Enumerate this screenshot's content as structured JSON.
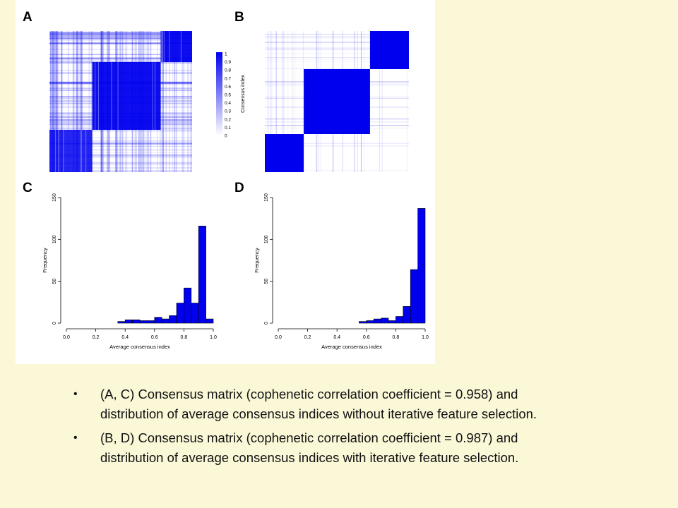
{
  "panels": {
    "a": "A",
    "b": "B",
    "c": "C",
    "d": "D"
  },
  "colorbar": {
    "title": "Consensus index",
    "ticks": [
      "1",
      "0.9",
      "0.8",
      "0.7",
      "0.6",
      "0.5",
      "0.4",
      "0.3",
      "0.2",
      "0.1",
      "0"
    ]
  },
  "colors": {
    "accent": "#0000ee",
    "background": "#fbf8d8"
  },
  "chart_data": [
    {
      "panel": "A",
      "type": "heatmap",
      "description_levels": "block consensus matrix",
      "blocks": [
        {
          "from": 0.0,
          "to": 0.3,
          "value": 0.85
        },
        {
          "from": 0.3,
          "to": 0.78,
          "value": 0.95
        },
        {
          "from": 0.78,
          "to": 1.0,
          "value": 0.95
        }
      ]
    },
    {
      "panel": "B",
      "type": "heatmap",
      "blocks": [
        {
          "from": 0.0,
          "to": 0.27,
          "value": 1.0
        },
        {
          "from": 0.27,
          "to": 0.73,
          "value": 1.0
        },
        {
          "from": 0.73,
          "to": 1.0,
          "value": 1.0
        }
      ]
    },
    {
      "panel": "C",
      "type": "bar",
      "xlabel": "Average consensus index",
      "ylabel": "Frequency",
      "xlim": [
        0,
        1
      ],
      "ylim": [
        0,
        150
      ],
      "xticks": [
        "0.0",
        "0.2",
        "0.4",
        "0.6",
        "0.8",
        "1.0"
      ],
      "yticks": [
        "0",
        "50",
        "100",
        "150"
      ],
      "bin_width": 0.05,
      "bin_starts": [
        0.35,
        0.4,
        0.45,
        0.5,
        0.55,
        0.6,
        0.65,
        0.7,
        0.75,
        0.8,
        0.85,
        0.9,
        0.95
      ],
      "values": [
        2,
        4,
        4,
        3,
        3,
        7,
        5,
        9,
        24,
        42,
        24,
        116,
        5
      ]
    },
    {
      "panel": "D",
      "type": "bar",
      "xlabel": "Average consensus index",
      "ylabel": "Frequency",
      "xlim": [
        0,
        1
      ],
      "ylim": [
        0,
        150
      ],
      "xticks": [
        "0.0",
        "0.2",
        "0.4",
        "0.6",
        "0.8",
        "1.0"
      ],
      "yticks": [
        "0",
        "50",
        "100",
        "150"
      ],
      "bin_width": 0.05,
      "bin_starts": [
        0.55,
        0.6,
        0.65,
        0.7,
        0.75,
        0.8,
        0.85,
        0.9,
        0.95
      ],
      "values": [
        2,
        3,
        5,
        6,
        3,
        8,
        20,
        64,
        137
      ]
    }
  ],
  "bullets": [
    {
      "marker": "•",
      "text": "(A, C) Consensus matrix (cophenetic correlation coefficient = 0.958) and distribution of average consensus indices without iterative feature selection."
    },
    {
      "marker": "•",
      "text": "(B, D) Consensus matrix (cophenetic correlation coefficient = 0.987) and distribution of average consensus indices with iterative feature selection."
    }
  ]
}
